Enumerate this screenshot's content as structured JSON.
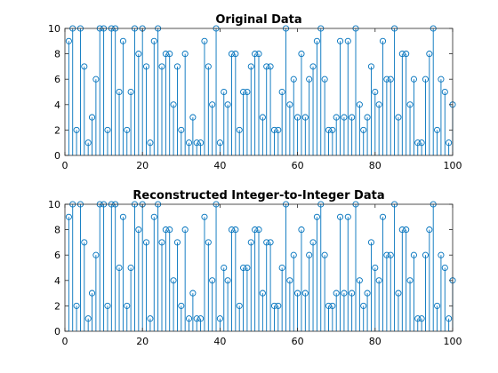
{
  "chart_data": [
    {
      "type": "stem",
      "title": "Original Data",
      "xlim": [
        0,
        100
      ],
      "ylim": [
        0,
        10
      ],
      "xticks": [
        0,
        20,
        40,
        60,
        80,
        100
      ],
      "yticks": [
        0,
        2,
        4,
        6,
        8,
        10
      ],
      "x": [
        1,
        2,
        3,
        4,
        5,
        6,
        7,
        8,
        9,
        10,
        11,
        12,
        13,
        14,
        15,
        16,
        17,
        18,
        19,
        20,
        21,
        22,
        23,
        24,
        25,
        26,
        27,
        28,
        29,
        30,
        31,
        32,
        33,
        34,
        35,
        36,
        37,
        38,
        39,
        40,
        41,
        42,
        43,
        44,
        45,
        46,
        47,
        48,
        49,
        50,
        51,
        52,
        53,
        54,
        55,
        56,
        57,
        58,
        59,
        60,
        61,
        62,
        63,
        64,
        65,
        66,
        67,
        68,
        69,
        70,
        71,
        72,
        73,
        74,
        75,
        76,
        77,
        78,
        79,
        80,
        81,
        82,
        83,
        84,
        85,
        86,
        87,
        88,
        89,
        90,
        91,
        92,
        93,
        94,
        95,
        96,
        97,
        98,
        99,
        100
      ],
      "values": [
        9,
        10,
        2,
        10,
        7,
        1,
        3,
        6,
        10,
        10,
        2,
        10,
        10,
        5,
        9,
        2,
        5,
        10,
        8,
        10,
        7,
        1,
        9,
        10,
        7,
        8,
        8,
        4,
        7,
        2,
        8,
        1,
        3,
        1,
        1,
        9,
        7,
        4,
        10,
        1,
        5,
        4,
        8,
        8,
        2,
        5,
        5,
        7,
        8,
        8,
        3,
        7,
        7,
        2,
        2,
        5,
        10,
        4,
        6,
        3,
        8,
        3,
        6,
        7,
        9,
        10,
        6,
        2,
        2,
        3,
        9,
        3,
        9,
        3,
        10,
        4,
        2,
        3,
        7,
        5,
        4,
        9,
        6,
        6,
        10,
        3,
        8,
        8,
        4,
        6,
        1,
        1,
        6,
        8,
        10,
        2,
        6,
        5,
        1,
        4
      ],
      "color": "#0072BD"
    },
    {
      "type": "stem",
      "title": "Reconstructed Integer-to-Integer Data",
      "xlim": [
        0,
        100
      ],
      "ylim": [
        0,
        10
      ],
      "xticks": [
        0,
        20,
        40,
        60,
        80,
        100
      ],
      "yticks": [
        0,
        2,
        4,
        6,
        8,
        10
      ],
      "x": [
        1,
        2,
        3,
        4,
        5,
        6,
        7,
        8,
        9,
        10,
        11,
        12,
        13,
        14,
        15,
        16,
        17,
        18,
        19,
        20,
        21,
        22,
        23,
        24,
        25,
        26,
        27,
        28,
        29,
        30,
        31,
        32,
        33,
        34,
        35,
        36,
        37,
        38,
        39,
        40,
        41,
        42,
        43,
        44,
        45,
        46,
        47,
        48,
        49,
        50,
        51,
        52,
        53,
        54,
        55,
        56,
        57,
        58,
        59,
        60,
        61,
        62,
        63,
        64,
        65,
        66,
        67,
        68,
        69,
        70,
        71,
        72,
        73,
        74,
        75,
        76,
        77,
        78,
        79,
        80,
        81,
        82,
        83,
        84,
        85,
        86,
        87,
        88,
        89,
        90,
        91,
        92,
        93,
        94,
        95,
        96,
        97,
        98,
        99,
        100
      ],
      "values": [
        9,
        10,
        2,
        10,
        7,
        1,
        3,
        6,
        10,
        10,
        2,
        10,
        10,
        5,
        9,
        2,
        5,
        10,
        8,
        10,
        7,
        1,
        9,
        10,
        7,
        8,
        8,
        4,
        7,
        2,
        8,
        1,
        3,
        1,
        1,
        9,
        7,
        4,
        10,
        1,
        5,
        4,
        8,
        8,
        2,
        5,
        5,
        7,
        8,
        8,
        3,
        7,
        7,
        2,
        2,
        5,
        10,
        4,
        6,
        3,
        8,
        3,
        6,
        7,
        9,
        10,
        6,
        2,
        2,
        3,
        9,
        3,
        9,
        3,
        10,
        4,
        2,
        3,
        7,
        5,
        4,
        9,
        6,
        6,
        10,
        3,
        8,
        8,
        4,
        6,
        1,
        1,
        6,
        8,
        10,
        2,
        6,
        5,
        1,
        4
      ],
      "color": "#0072BD"
    }
  ]
}
